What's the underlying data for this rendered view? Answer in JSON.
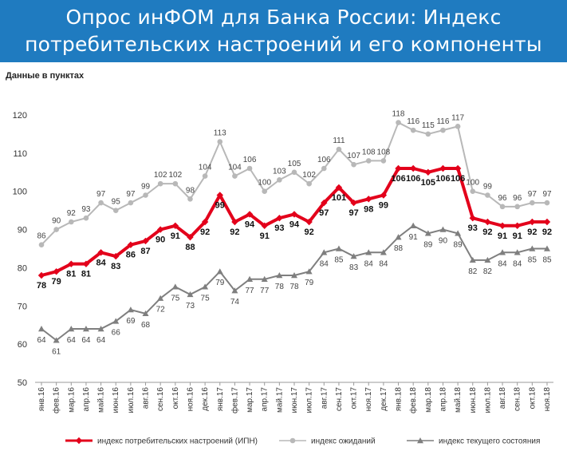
{
  "header": {
    "title": "Опрос инФОМ для Банка России: Индекс потребительских настроений и его компоненты"
  },
  "chart_data": {
    "type": "line",
    "units_label": "Данные в пунктах",
    "ylim": [
      50,
      120
    ],
    "yticks": [
      50,
      60,
      70,
      80,
      90,
      100,
      110,
      120
    ],
    "grid": false,
    "legend_position": "bottom",
    "categories": [
      "янв.16",
      "фев.16",
      "мар.16",
      "апр.16",
      "май.16",
      "июн.16",
      "июл.16",
      "авг.16",
      "сен.16",
      "окт.16",
      "ноя.16",
      "дек.16",
      "янв.17",
      "фев.17",
      "мар.17",
      "апр.17",
      "май.17",
      "июн.17",
      "июл.17",
      "авг.17",
      "сен.17",
      "окт.17",
      "ноя.17",
      "дек.17",
      "янв.18",
      "фев.18",
      "мар.18",
      "апр.18",
      "май.18",
      "июн.18",
      "июл.18",
      "авг.18",
      "сен.18",
      "окт.18",
      "ноя.18"
    ],
    "series": [
      {
        "name": "индекс потребительских настроений (ИПН)",
        "color": "#e3001b",
        "marker": "diamond",
        "values": [
          78,
          79,
          81,
          81,
          84,
          83,
          86,
          87,
          90,
          91,
          88,
          92,
          99,
          92,
          94,
          91,
          93,
          94,
          92,
          97,
          101,
          97,
          98,
          99,
          106,
          106,
          105,
          106,
          106,
          93,
          92,
          91,
          91,
          92,
          92
        ]
      },
      {
        "name": "индекс ожиданий",
        "color": "#b8b8b8",
        "marker": "circle",
        "values": [
          86,
          90,
          92,
          93,
          97,
          95,
          97,
          99,
          102,
          102,
          98,
          104,
          113,
          104,
          106,
          100,
          103,
          105,
          102,
          106,
          111,
          107,
          108,
          108,
          118,
          116,
          115,
          116,
          117,
          100,
          99,
          96,
          96,
          97,
          97
        ]
      },
      {
        "name": "индекс текущего состояния",
        "color": "#7f7f7f",
        "marker": "triangle",
        "values": [
          64,
          61,
          64,
          64,
          64,
          66,
          69,
          68,
          72,
          75,
          73,
          75,
          79,
          74,
          77,
          77,
          78,
          78,
          79,
          84,
          85,
          83,
          84,
          84,
          88,
          91,
          89,
          90,
          89,
          82,
          82,
          84,
          84,
          85,
          85
        ]
      }
    ]
  }
}
